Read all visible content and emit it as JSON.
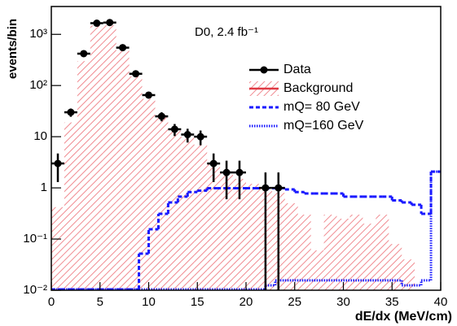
{
  "chart_data": {
    "type": "histogram",
    "annotation": "D0, 2.4 fb⁻¹",
    "x_label": "dE/dx (MeV/cm)",
    "y_label": "events/bin",
    "xlim": [
      0,
      40
    ],
    "xticks": [
      0,
      5,
      10,
      15,
      20,
      25,
      30,
      35,
      40
    ],
    "ylim": [
      0.01,
      3500
    ],
    "log_y": true,
    "yticks": [
      {
        "value": 0.01,
        "label": "10⁻²"
      },
      {
        "value": 0.1,
        "label": "10⁻¹"
      },
      1,
      10,
      {
        "value": 100,
        "label": "10²"
      },
      {
        "value": 1000,
        "label": "10³"
      }
    ],
    "legend": "upper right",
    "series": [
      {
        "name": "Data",
        "kind": "points",
        "color": "#000000",
        "x": [
          0.67,
          2,
          3.33,
          4.67,
          6,
          7.33,
          8.67,
          10,
          11.33,
          12.67,
          14,
          15.33,
          16.67,
          18,
          19.33,
          22,
          23.33
        ],
        "values": [
          3,
          30,
          420,
          1650,
          1700,
          550,
          170,
          65,
          25,
          14,
          11,
          10,
          3,
          2,
          2,
          1,
          1
        ],
        "errors": [
          1.7,
          5.5,
          20,
          41,
          41,
          23,
          13,
          8,
          5,
          3.7,
          3.3,
          3.2,
          1.7,
          1.4,
          1.4,
          1,
          1
        ]
      },
      {
        "name": "Background",
        "kind": "hatch",
        "color": "#e03a44",
        "bins": [
          0,
          1.33,
          2.67,
          4,
          5.33,
          6.67,
          8,
          9.33,
          10.67,
          12,
          13.33,
          14.67,
          16,
          17.33,
          18.67,
          20,
          21.33,
          22.67,
          24,
          25.33,
          26.67,
          28,
          29.33,
          30.67,
          32,
          33.33,
          34.67,
          36,
          37.33,
          38.67,
          40
        ],
        "values": [
          0.42,
          19,
          300,
          1500,
          1500,
          480,
          150,
          55,
          24,
          13,
          10,
          7,
          3,
          2,
          1.5,
          1.2,
          1,
          0.8,
          0.5,
          0.3,
          0.06,
          0.3,
          0.25,
          0.3,
          0.2,
          0.3,
          0.08,
          0.04,
          0.01,
          0.01
        ]
      },
      {
        "name": "mQ= 80 GeV",
        "kind": "step",
        "dash": "5 3",
        "color": "#1a1aff",
        "bins": [
          0,
          1,
          2,
          3,
          4,
          5,
          6,
          7,
          8,
          9,
          10,
          11,
          12,
          13,
          14,
          15,
          16,
          17,
          18,
          19,
          20,
          21,
          22,
          23,
          24,
          25,
          26,
          27,
          28,
          29,
          30,
          31,
          32,
          33,
          34,
          35,
          36,
          37,
          38,
          39,
          40
        ],
        "values": [
          0.01,
          0.01,
          0.01,
          0.01,
          0.01,
          0.01,
          0.01,
          0.01,
          0.01,
          0.05,
          0.15,
          0.3,
          0.5,
          0.65,
          0.8,
          0.85,
          0.95,
          0.95,
          0.95,
          0.95,
          0.95,
          0.95,
          0.95,
          0.95,
          0.9,
          0.8,
          0.75,
          0.75,
          0.75,
          0.75,
          0.65,
          0.65,
          0.65,
          0.65,
          0.65,
          0.55,
          0.5,
          0.45,
          0.3,
          2
        ]
      },
      {
        "name": "mQ=160 GeV",
        "kind": "step",
        "dash": "1.5 1.5",
        "color": "#1a1aff",
        "bins": [
          0,
          1,
          2,
          3,
          4,
          5,
          6,
          7,
          8,
          9,
          10,
          11,
          12,
          13,
          14,
          15,
          16,
          17,
          18,
          19,
          20,
          21,
          22,
          23,
          24,
          25,
          26,
          27,
          28,
          29,
          30,
          31,
          32,
          33,
          34,
          35,
          36,
          37,
          38,
          39,
          40
        ],
        "values": [
          0.01,
          0.01,
          0.01,
          0.01,
          0.01,
          0.01,
          0.01,
          0.01,
          0.01,
          0.01,
          0.01,
          0.01,
          0.01,
          0.01,
          0.01,
          0.01,
          0.01,
          0.01,
          0.01,
          0.01,
          0.01,
          0.01,
          0.012,
          0.015,
          0.015,
          0.015,
          0.015,
          0.015,
          0.015,
          0.015,
          0.015,
          0.015,
          0.015,
          0.015,
          0.015,
          0.015,
          0.012,
          0.012,
          0.015,
          2
        ]
      }
    ]
  }
}
